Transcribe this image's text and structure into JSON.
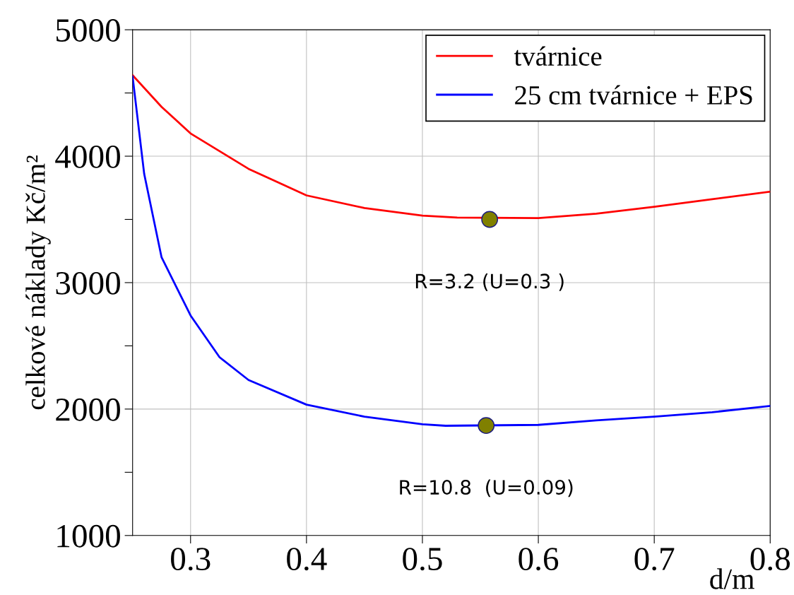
{
  "chart_data": {
    "type": "line",
    "xlabel": "d/m",
    "ylabel": "celkové náklady Kč/m²",
    "xlim": [
      0.25,
      0.8
    ],
    "ylim": [
      1000,
      5000
    ],
    "xticks": [
      0.3,
      0.4,
      0.5,
      0.6,
      0.7,
      0.8
    ],
    "yticks": [
      1000,
      {
        "value": 1500,
        "label": null
      },
      2000,
      {
        "value": 2500,
        "label": null
      },
      3000,
      {
        "value": 3500,
        "label": null
      },
      4000,
      {
        "value": 4500,
        "label": null
      },
      5000
    ],
    "grid": true,
    "legend": "top right",
    "marker": "none",
    "line_style": "solid",
    "series": [
      {
        "name": "tvárnice",
        "color": "#ff0000",
        "x": [
          0.25,
          0.275,
          0.3,
          0.35,
          0.4,
          0.45,
          0.5,
          0.53,
          0.6,
          0.65,
          0.7,
          0.75,
          0.8
        ],
        "values": [
          4640,
          4390,
          4180,
          3900,
          3690,
          3590,
          3530,
          3515,
          3510,
          3545,
          3600,
          3660,
          3720
        ]
      },
      {
        "name": "25 cm tvárnice + EPS",
        "color": "#0000ff",
        "x": [
          0.25,
          0.26,
          0.275,
          0.3,
          0.325,
          0.35,
          0.4,
          0.45,
          0.5,
          0.52,
          0.6,
          0.65,
          0.7,
          0.75,
          0.8
        ],
        "values": [
          4630,
          3860,
          3200,
          2740,
          2410,
          2230,
          2035,
          1940,
          1880,
          1868,
          1875,
          1910,
          1940,
          1975,
          2025
        ]
      },
      {
        "type": "scatter",
        "marker": "circle",
        "color": "#808000",
        "x": [
          0.558,
          0.555
        ],
        "values": [
          3500,
          1870
        ]
      }
    ],
    "annotations": [
      {
        "text": "R=3.2 (U=0.3 )",
        "x": 0.558,
        "y": 3500
      },
      {
        "text": "R=10.8  (U=0.09)",
        "x": 0.555,
        "y": 1870
      }
    ]
  }
}
